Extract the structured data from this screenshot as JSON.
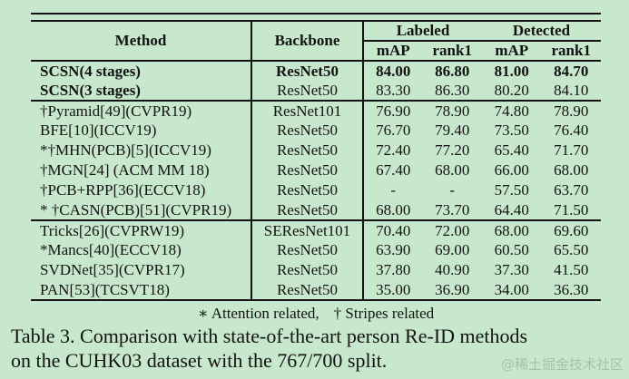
{
  "table": {
    "header": {
      "method": "Method",
      "backbone": "Backbone",
      "labeled": "Labeled",
      "detected": "Detected",
      "map": "mAP",
      "rank1": "rank1"
    },
    "groups": [
      {
        "rows": [
          {
            "method": "SCSN(4 stages)",
            "backbone": "ResNet50",
            "values": [
              "84.00",
              "86.80",
              "81.00",
              "84.70"
            ],
            "bold_method": true,
            "bold_values": true
          },
          {
            "method": "SCSN(3 stages)",
            "backbone": "ResNet50",
            "values": [
              "83.30",
              "86.30",
              "80.20",
              "84.10"
            ],
            "bold_method": true,
            "bold_values": false
          }
        ]
      },
      {
        "rows": [
          {
            "method": "†Pyramid[49](CVPR19)",
            "backbone": "ResNet101",
            "values": [
              "76.90",
              "78.90",
              "74.80",
              "78.90"
            ],
            "bold_method": false,
            "bold_values": false
          },
          {
            "method": "BFE[10](ICCV19)",
            "backbone": "ResNet50",
            "values": [
              "76.70",
              "79.40",
              "73.50",
              "76.40"
            ],
            "bold_method": false,
            "bold_values": false
          },
          {
            "method": "*†MHN(PCB)[5](ICCV19)",
            "backbone": "ResNet50",
            "values": [
              "72.40",
              "77.20",
              "65.40",
              "71.70"
            ],
            "bold_method": false,
            "bold_values": false
          },
          {
            "method": "†MGN[24] (ACM MM 18)",
            "backbone": "ResNet50",
            "values": [
              "67.40",
              "68.00",
              "66.00",
              "68.00"
            ],
            "bold_method": false,
            "bold_values": false
          },
          {
            "method": "†PCB+RPP[36](ECCV18)",
            "backbone": "ResNet50",
            "values": [
              "-",
              "-",
              "57.50",
              "63.70"
            ],
            "bold_method": false,
            "bold_values": false
          },
          {
            "method": "* †CASN(PCB)[51](CVPR19)",
            "backbone": "ResNet50",
            "values": [
              "68.00",
              "73.70",
              "64.40",
              "71.50"
            ],
            "bold_method": false,
            "bold_values": false
          }
        ]
      },
      {
        "rows": [
          {
            "method": "Tricks[26](CVPRW19)",
            "backbone": "SEResNet101",
            "values": [
              "70.40",
              "72.00",
              "68.00",
              "69.60"
            ],
            "bold_method": false,
            "bold_values": false
          },
          {
            "method": "*Mancs[40](ECCV18)",
            "backbone": "ResNet50",
            "values": [
              "63.90",
              "69.00",
              "60.50",
              "65.50"
            ],
            "bold_method": false,
            "bold_values": false
          },
          {
            "method": "SVDNet[35](CVPR17)",
            "backbone": "ResNet50",
            "values": [
              "37.80",
              "40.90",
              "37.30",
              "41.50"
            ],
            "bold_method": false,
            "bold_values": false
          },
          {
            "method": "PAN[53](TCSVT18)",
            "backbone": "ResNet50",
            "values": [
              "35.00",
              "36.90",
              "34.00",
              "36.30"
            ],
            "bold_method": false,
            "bold_values": false
          }
        ]
      }
    ]
  },
  "footnote": {
    "attention": "∗ Attention related,",
    "stripes": "† Stripes related"
  },
  "caption": {
    "line1": "Table 3. Comparison with state-of-the-art person Re-ID methods",
    "line2": "on the CUHK03 dataset with the 767/700 split."
  },
  "watermark": "@稀土掘金技术社区",
  "colors": {
    "background": "#c7e8cc",
    "rule": "#131313",
    "text": "#131313",
    "watermark": "#a3c3a6"
  }
}
